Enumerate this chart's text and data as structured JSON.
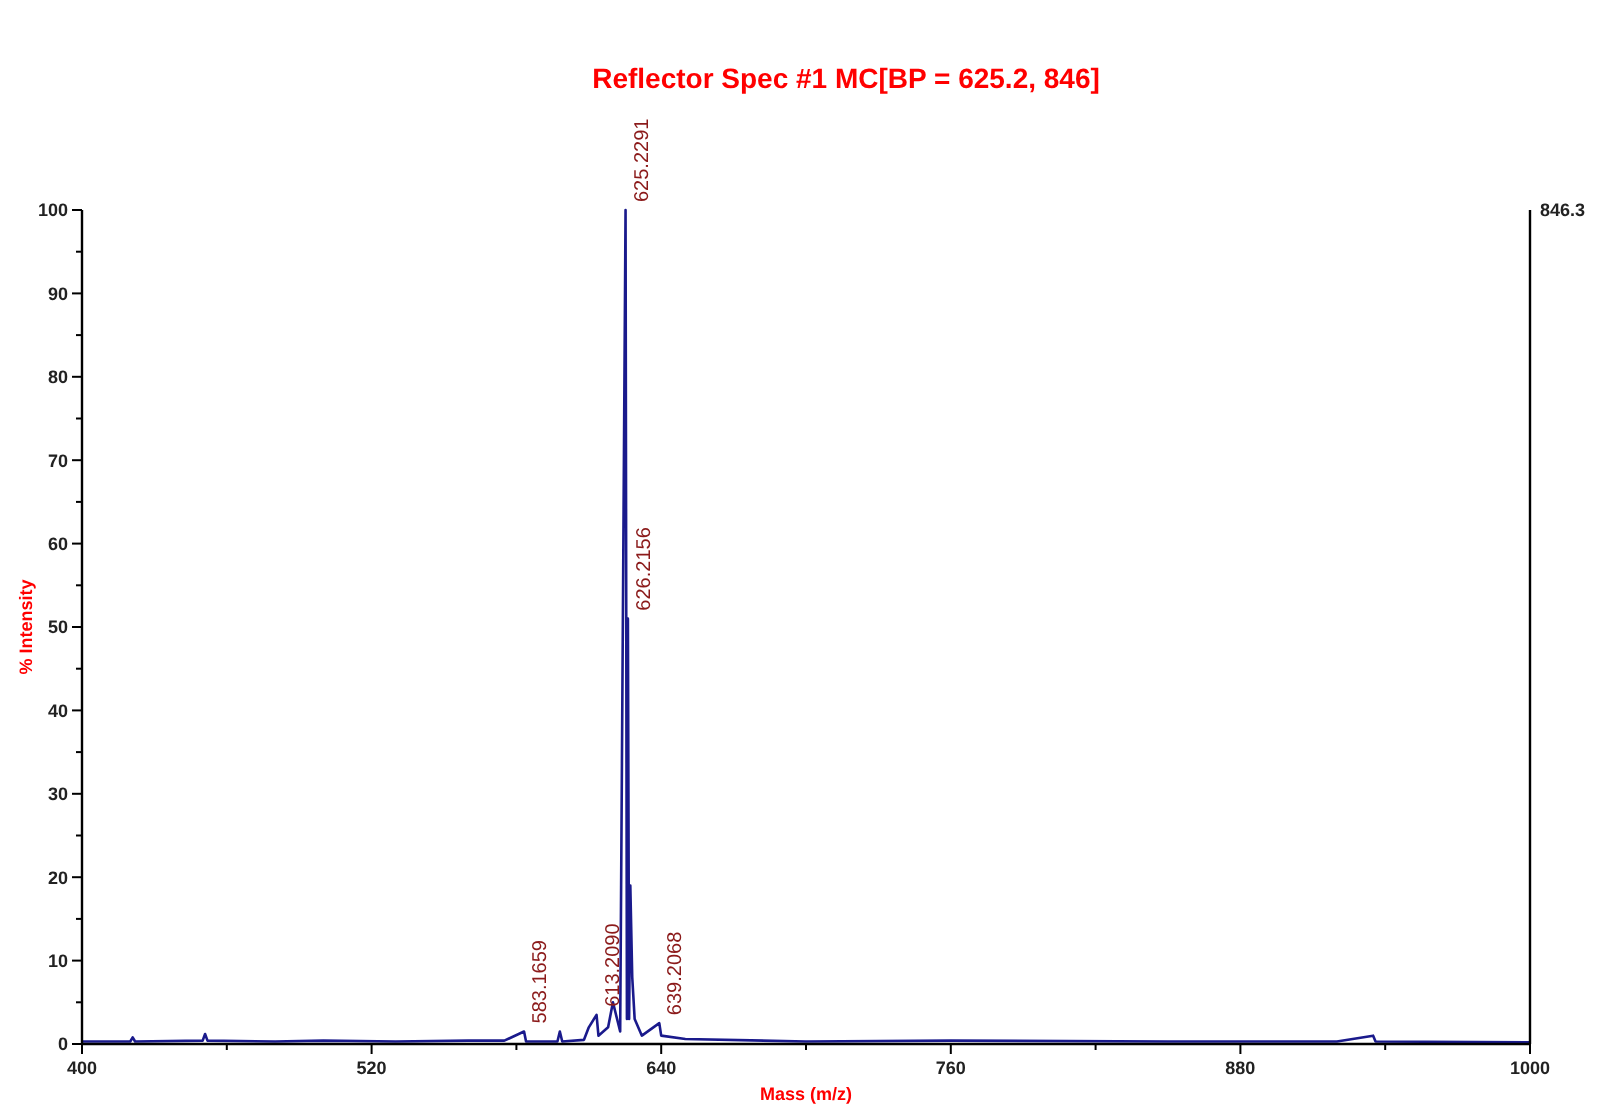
{
  "chart_data": {
    "type": "line",
    "title": "Reflector Spec #1 MC[BP = 625.2, 846]",
    "xlabel": "Mass (m/z)",
    "ylabel": "% Intensity",
    "xlim": [
      400,
      1000
    ],
    "xticks": [
      400,
      {
        "value": 460,
        "label": null
      },
      520,
      {
        "value": 580,
        "label": null
      },
      640,
      {
        "value": 700,
        "label": null
      },
      760,
      {
        "value": 820,
        "label": null
      },
      880,
      {
        "value": 940,
        "label": null
      },
      1000
    ],
    "ylim": [
      0,
      100
    ],
    "yticks": [
      0,
      {
        "value": 5,
        "label": null
      },
      10,
      {
        "value": 15,
        "label": null
      },
      20,
      {
        "value": 25,
        "label": null
      },
      30,
      {
        "value": 35,
        "label": null
      },
      40,
      {
        "value": 45,
        "label": null
      },
      50,
      {
        "value": 55,
        "label": null
      },
      60,
      {
        "value": 65,
        "label": null
      },
      70,
      {
        "value": 75,
        "label": null
      },
      80,
      {
        "value": 85,
        "label": null
      },
      90,
      {
        "value": 95,
        "label": null
      },
      100
    ],
    "grid": false,
    "marker": "none",
    "line_style": "solid",
    "series": [
      {
        "color": "#1a1a8c",
        "x": [
          400,
          420,
          421,
          422,
          450,
          451,
          452,
          480,
          500,
          530,
          560,
          575,
          583.17,
          584,
          597,
          598,
          599,
          608,
          610,
          613.21,
          614,
          618,
          620,
          623,
          625.23,
          625.8,
          626.2,
          626.7,
          627.2,
          628,
          629,
          632,
          639.21,
          640,
          650,
          700,
          760,
          850,
          920,
          935,
          936,
          1000
        ],
        "values": [
          0.3,
          0.3,
          0.8,
          0.3,
          0.4,
          1.2,
          0.4,
          0.3,
          0.4,
          0.3,
          0.4,
          0.4,
          1.5,
          0.3,
          0.3,
          1.5,
          0.3,
          0.5,
          2,
          3.5,
          1,
          2,
          5,
          1.5,
          100,
          3,
          51,
          3,
          19,
          8,
          3,
          1,
          2.5,
          1,
          0.6,
          0.3,
          0.4,
          0.3,
          0.3,
          1,
          0.3,
          0.2
        ]
      }
    ],
    "annotations": [
      {
        "text": "583.1659",
        "x": 583.17,
        "y": 1.5
      },
      {
        "text": "613.2090",
        "x": 613.21,
        "y": 3.5
      },
      {
        "text": "625.2291",
        "x": 625.23,
        "y": 100
      },
      {
        "text": "626.2156",
        "x": 626.2,
        "y": 51
      },
      {
        "text": "639.2068",
        "x": 639.21,
        "y": 2.5
      },
      "846.3"
    ]
  }
}
